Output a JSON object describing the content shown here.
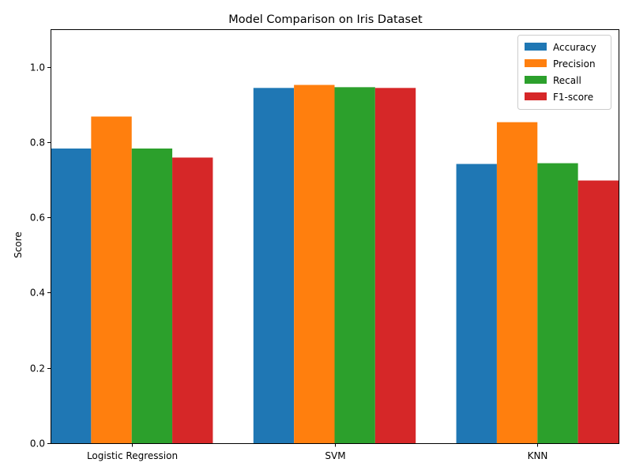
{
  "chart_data": {
    "type": "bar",
    "title": "Model Comparison on Iris Dataset",
    "xlabel": "",
    "ylabel": "Score",
    "ylim": [
      0,
      1.1
    ],
    "yticks": [
      "0.0",
      "0.2",
      "0.4",
      "0.6",
      "0.8",
      "1.0"
    ],
    "categories": [
      "Logistic Regression",
      "SVM",
      "KNN"
    ],
    "series": [
      {
        "name": "Accuracy",
        "color": "#1f77b4",
        "values": [
          0.783,
          0.944,
          0.742
        ]
      },
      {
        "name": "Precision",
        "color": "#ff7f0e",
        "values": [
          0.868,
          0.952,
          0.853
        ]
      },
      {
        "name": "Recall",
        "color": "#2ca02c",
        "values": [
          0.783,
          0.946,
          0.744
        ]
      },
      {
        "name": "F1-score",
        "color": "#d62728",
        "values": [
          0.759,
          0.944,
          0.698
        ]
      }
    ],
    "legend_position": "top-right",
    "grid": false
  }
}
